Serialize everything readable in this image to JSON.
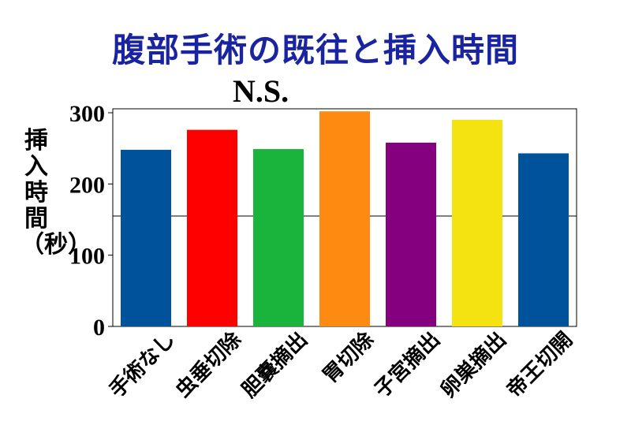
{
  "chart_data": {
    "type": "bar",
    "title": "腹部手術の既往と挿入時間",
    "annotation": "N.S.",
    "ylabel": "挿入時間（秒）",
    "ylim": [
      0,
      300
    ],
    "yticks": [
      "0",
      "100",
      "200",
      "300"
    ],
    "reference_line": 155,
    "categories": [
      "手術なし",
      "虫垂切除",
      "胆嚢摘出",
      "胃切除",
      "子宮摘出",
      "卵巣摘出",
      "帝王切開"
    ],
    "values": [
      248,
      276,
      249,
      302,
      258,
      290,
      243
    ],
    "colors": [
      "#00529b",
      "#ff0000",
      "#18b43c",
      "#ff8a12",
      "#84007f",
      "#f5e211",
      "#00529b"
    ]
  }
}
